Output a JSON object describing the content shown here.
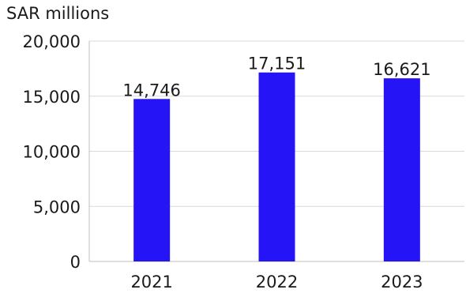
{
  "chart_data": {
    "type": "bar",
    "unit_label": "SAR millions",
    "categories": [
      "2021",
      "2022",
      "2023"
    ],
    "values": [
      14746,
      17151,
      16621
    ],
    "data_labels": [
      "14,746",
      "17,151",
      "16,621"
    ],
    "yticks": [
      0,
      5000,
      10000,
      15000,
      20000
    ],
    "ytick_labels": [
      "0",
      "5,000",
      "10,000",
      "15,000",
      "20,000"
    ],
    "ylim": [
      0,
      20000
    ],
    "grid": true,
    "legend": "none",
    "bar_color": "#2514f5",
    "grid_color": "#d9d9d9"
  }
}
